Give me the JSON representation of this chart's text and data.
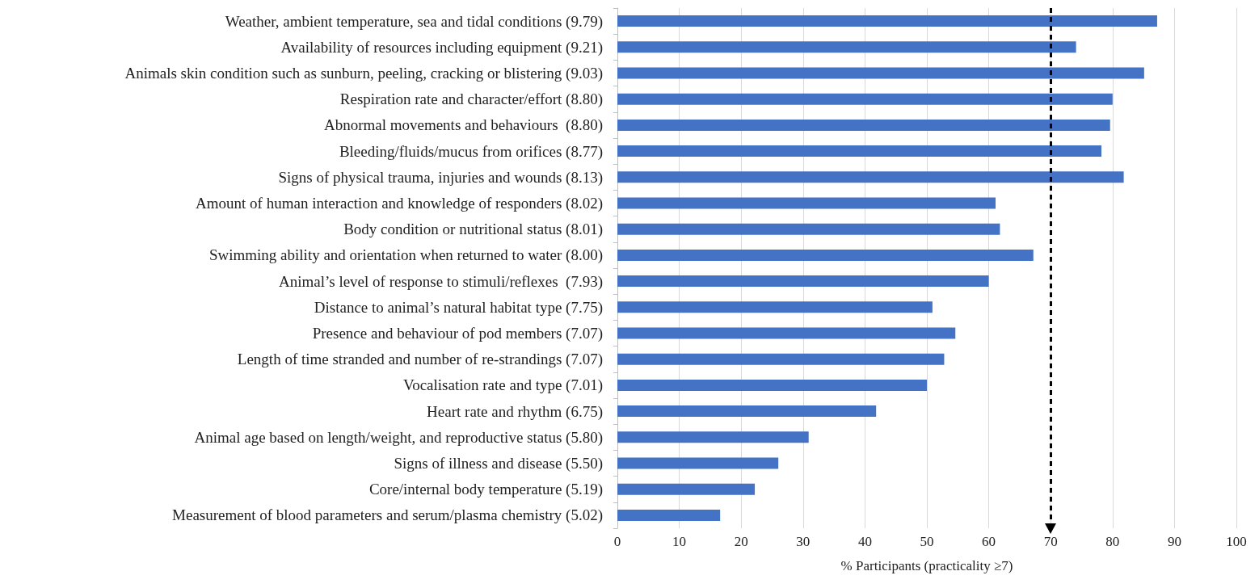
{
  "chart_data": {
    "type": "bar",
    "orientation": "horizontal",
    "xlabel": "% Participants (practicality ≥7)",
    "categories": [
      "Weather, ambient temperature, sea and tidal conditions (9.79)",
      "Availability of resources including equipment (9.21)",
      "Animals skin condition such as sunburn, peeling, cracking or blistering (9.03)",
      "Respiration rate and character/effort (8.80)",
      "Abnormal movements and behaviours  (8.80)",
      "Bleeding/fluids/mucus from orifices (8.77)",
      "Signs of physical trauma, injuries and wounds (8.13)",
      "Amount of human interaction and knowledge of responders (8.02)",
      "Body condition or nutritional status (8.01)",
      "Swimming ability and orientation when returned to water (8.00)",
      "Animal’s level of response to stimuli/reflexes  (7.93)",
      "Distance to animal’s natural habitat type (7.75)",
      "Presence and behaviour of pod members (7.07)",
      "Length of time stranded and number of re-strandings (7.07)",
      "Vocalisation rate and type (7.01)",
      "Heart rate and rhythm (6.75)",
      "Animal age based on length/weight, and reproductive status (5.80)",
      "Signs of illness and disease (5.50)",
      "Core/internal body temperature (5.19)",
      "Measurement of blood parameters and serum/plasma chemistry (5.02)"
    ],
    "values": [
      87.2,
      74.1,
      85.1,
      80,
      79.6,
      78.2,
      81.8,
      61.1,
      61.8,
      67.2,
      60,
      50.9,
      54.6,
      52.8,
      50,
      41.8,
      30.9,
      26,
      22.2,
      16.6
    ],
    "color": "#4472c4",
    "xlim": [
      0,
      100
    ],
    "xticks": [
      0,
      10,
      20,
      30,
      40,
      50,
      60,
      70,
      80,
      90,
      100
    ],
    "grid": "x",
    "ref_lines": [
      {
        "axis": "x",
        "value": 70,
        "label": null,
        "color": "#000000",
        "line_style": "dashed"
      }
    ]
  }
}
